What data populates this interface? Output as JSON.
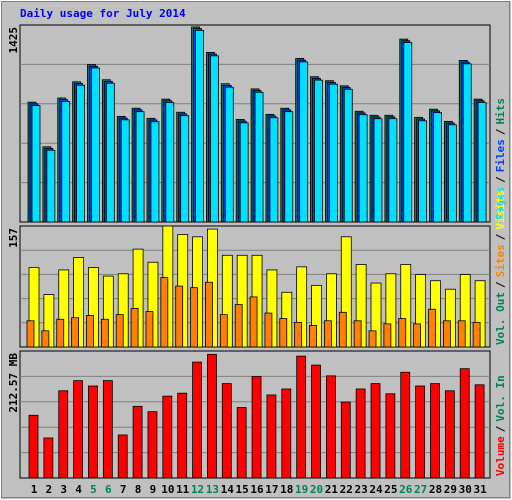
{
  "title": "Daily usage for July 2014",
  "categories": [
    "1",
    "2",
    "3",
    "4",
    "5",
    "6",
    "7",
    "8",
    "9",
    "10",
    "11",
    "12",
    "13",
    "14",
    "15",
    "16",
    "17",
    "18",
    "19",
    "20",
    "21",
    "22",
    "23",
    "24",
    "25",
    "26",
    "27",
    "28",
    "29",
    "30",
    "31"
  ],
  "highlight_categories": [
    "5",
    "6",
    "12",
    "13",
    "19",
    "20",
    "26",
    "27"
  ],
  "category_color": "#000000",
  "highlight_color": "#00805c",
  "separator": "/",
  "chart_data": [
    {
      "type": "bar",
      "ylim": [
        0,
        1425
      ],
      "yticks": [
        1425
      ],
      "grid": true,
      "series": [
        {
          "name": "Hits",
          "color": "#00805c",
          "values": [
            867,
            544,
            897,
            1014,
            1139,
            1029,
            764,
            823,
            750,
            889,
            794,
            1411,
            1227,
            1000,
            742,
            963,
            779,
            823,
            1183,
            1051,
            1022,
            985,
            801,
            772,
            772,
            1323,
            757,
            816,
            728,
            1169,
            889
          ]
        },
        {
          "name": "Files",
          "color": "#0040ff",
          "values": [
            855,
            532,
            885,
            1002,
            1127,
            1017,
            752,
            811,
            738,
            877,
            782,
            1399,
            1215,
            988,
            730,
            951,
            767,
            811,
            1171,
            1039,
            1010,
            973,
            789,
            760,
            760,
            1311,
            745,
            804,
            716,
            1157,
            877
          ]
        },
        {
          "name": "Pages",
          "color": "#00e0ff",
          "values": [
            842,
            519,
            872,
            989,
            1114,
            1004,
            739,
            798,
            725,
            864,
            769,
            1386,
            1202,
            975,
            717,
            938,
            754,
            798,
            1158,
            1026,
            997,
            960,
            776,
            747,
            747,
            1298,
            732,
            791,
            703,
            1144,
            864
          ]
        }
      ]
    },
    {
      "type": "bar",
      "ylim": [
        0,
        157
      ],
      "yticks": [
        157
      ],
      "grid": true,
      "extra_legend": [
        {
          "name": "Vol. Out",
          "color": "#00805c"
        }
      ],
      "series": [
        {
          "name": "Visits",
          "color": "#ffff00",
          "values": [
            103,
            68,
            100,
            116,
            103,
            92,
            95,
            127,
            110,
            157,
            146,
            143,
            153,
            119,
            119,
            119,
            100,
            71,
            104,
            80,
            95,
            143,
            107,
            83,
            95,
            107,
            94,
            86,
            75,
            94,
            86
          ]
        },
        {
          "name": "Sites",
          "color": "#ff8000",
          "values": [
            34,
            21,
            36,
            38,
            41,
            36,
            42,
            50,
            46,
            90,
            79,
            77,
            84,
            42,
            55,
            65,
            44,
            37,
            32,
            28,
            34,
            45,
            34,
            21,
            30,
            37,
            30,
            49,
            34,
            34,
            32
          ]
        }
      ]
    },
    {
      "type": "bar",
      "ylim": [
        0,
        212.57
      ],
      "yticks": [
        {
          "value": 212.57,
          "label": "212.57 MB"
        }
      ],
      "grid": true,
      "extra_legend": [
        {
          "name": "Vol. In",
          "color": "#00805c"
        }
      ],
      "series": [
        {
          "name": "Volume",
          "color": "#ff0000",
          "values": [
            105,
            67,
            146,
            163,
            154,
            163,
            72,
            120,
            111,
            137,
            142,
            194,
            207,
            158,
            118,
            170,
            139,
            149,
            204,
            189,
            171,
            127,
            149,
            158,
            141,
            177,
            154,
            158,
            146,
            183,
            156
          ]
        }
      ]
    }
  ]
}
